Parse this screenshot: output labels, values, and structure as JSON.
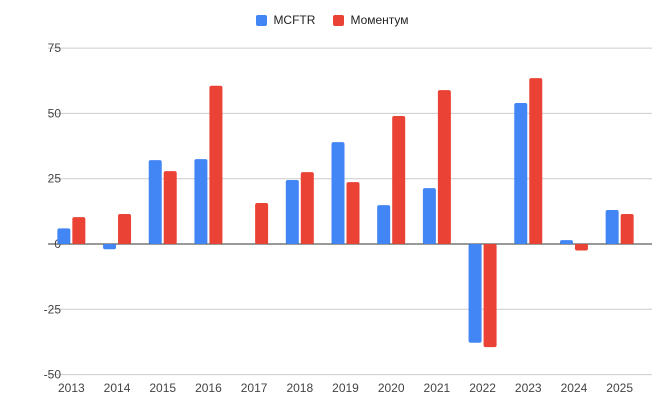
{
  "chart_data": {
    "type": "bar",
    "title": "",
    "xlabel": "",
    "ylabel": "",
    "categories": [
      "2013",
      "2014",
      "2015",
      "2016",
      "2017",
      "2018",
      "2019",
      "2020",
      "2021",
      "2022",
      "2023",
      "2024",
      "2025"
    ],
    "series": [
      {
        "name": "MCFTR",
        "color": "#4285f4",
        "values": [
          6.0,
          -2.0,
          32.1,
          32.5,
          0,
          24.5,
          39.0,
          14.9,
          21.4,
          -37.8,
          54.0,
          1.5,
          13.0
        ]
      },
      {
        "name": "Моментум",
        "color": "#ea4335",
        "values": [
          10.3,
          11.5,
          27.9,
          60.6,
          15.7,
          27.5,
          23.7,
          49.0,
          58.9,
          -39.5,
          63.5,
          -2.5,
          11.5
        ]
      }
    ],
    "ylim": [
      -50,
      75
    ],
    "yticks": [
      "-50",
      "-25",
      "0",
      "25",
      "50",
      "75"
    ],
    "grid": true,
    "legend": "top"
  }
}
